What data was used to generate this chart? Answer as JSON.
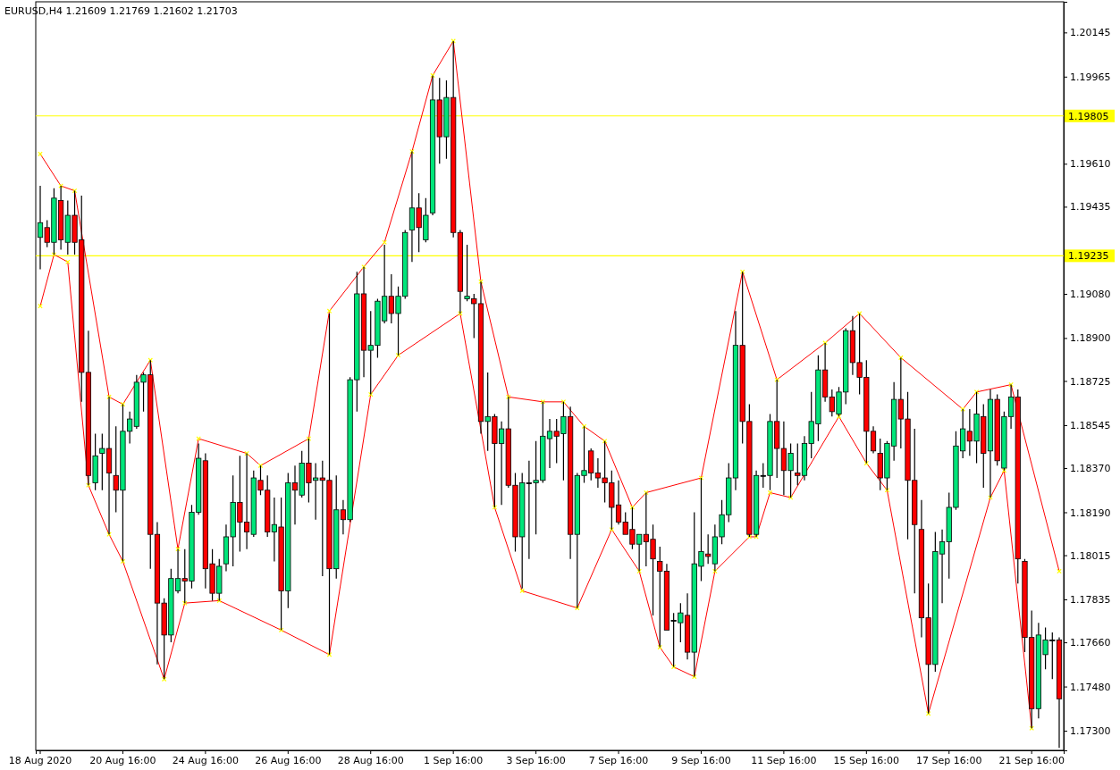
{
  "chart_data": {
    "type": "candlestick",
    "title": "EURUSD,H4 1.21609 1.21769 1.21602 1.21703",
    "categories": [
      "18 Aug 2020",
      null,
      null,
      null,
      null,
      null,
      null,
      null,
      null,
      null,
      null,
      null,
      "20 Aug 16:00",
      null,
      null,
      null,
      null,
      null,
      null,
      null,
      null,
      null,
      null,
      null,
      "24 Aug 16:00",
      null,
      null,
      null,
      null,
      null,
      null,
      null,
      null,
      null,
      null,
      null,
      "26 Aug 16:00",
      null,
      null,
      null,
      null,
      null,
      null,
      null,
      null,
      null,
      null,
      null,
      "28 Aug 16:00",
      null,
      null,
      null,
      null,
      null,
      null,
      null,
      null,
      null,
      null,
      null,
      "1 Sep 16:00",
      null,
      null,
      null,
      null,
      null,
      null,
      null,
      null,
      null,
      null,
      null,
      "3 Sep 16:00",
      null,
      null,
      null,
      null,
      null,
      null,
      null,
      null,
      null,
      null,
      null,
      "7 Sep 16:00",
      null,
      null,
      null,
      null,
      null,
      null,
      null,
      null,
      null,
      null,
      null,
      "9 Sep 16:00",
      null,
      null,
      null,
      null,
      null,
      null,
      null,
      null,
      null,
      null,
      null,
      "11 Sep 16:00",
      null,
      null,
      null,
      null,
      null,
      null,
      null,
      null,
      null,
      null,
      null,
      "15 Sep 16:00",
      null,
      null,
      null,
      null,
      null,
      null,
      null,
      null,
      null,
      null,
      null,
      "17 Sep 16:00",
      null,
      null,
      null,
      null,
      null,
      null,
      null,
      null,
      null,
      null,
      null,
      "21 Sep 16:00",
      null,
      null,
      null,
      null
    ],
    "ohlc": [
      [
        1.1931,
        1.1952,
        1.1918,
        1.1937
      ],
      [
        1.1935,
        1.1938,
        1.1927,
        1.1929
      ],
      [
        1.1929,
        1.1951,
        1.1924,
        1.1947
      ],
      [
        1.1946,
        1.1952,
        1.1926,
        1.193
      ],
      [
        1.1929,
        1.1946,
        1.1924,
        1.194
      ],
      [
        1.194,
        1.195,
        1.1924,
        1.1929
      ],
      [
        1.193,
        1.1948,
        1.1864,
        1.1876
      ],
      [
        1.1876,
        1.1893,
        1.183,
        1.1834
      ],
      [
        1.1831,
        1.1851,
        1.1828,
        1.1842
      ],
      [
        1.1843,
        1.1851,
        1.1828,
        1.1845
      ],
      [
        1.1845,
        1.1866,
        1.181,
        1.1835
      ],
      [
        1.1834,
        1.1854,
        1.1819,
        1.1828
      ],
      [
        1.1828,
        1.1863,
        1.1799,
        1.1852
      ],
      [
        1.1852,
        1.186,
        1.1847,
        1.1857
      ],
      [
        1.1854,
        1.1875,
        1.1853,
        1.1872
      ],
      [
        1.1872,
        1.1876,
        1.186,
        1.1875
      ],
      [
        1.1875,
        1.1881,
        1.1796,
        1.181
      ],
      [
        1.181,
        1.1815,
        1.1757,
        1.1782
      ],
      [
        1.1782,
        1.1784,
        1.1751,
        1.1769
      ],
      [
        1.1769,
        1.1796,
        1.1766,
        1.1792
      ],
      [
        1.1787,
        1.1804,
        1.1786,
        1.1792
      ],
      [
        1.1792,
        1.1804,
        1.1782,
        1.1791
      ],
      [
        1.1791,
        1.1822,
        1.1788,
        1.1819
      ],
      [
        1.1819,
        1.1847,
        1.1818,
        1.1841
      ],
      [
        1.184,
        1.1843,
        1.1788,
        1.1796
      ],
      [
        1.1798,
        1.1804,
        1.1783,
        1.1786
      ],
      [
        1.1786,
        1.18,
        1.1783,
        1.1797
      ],
      [
        1.1798,
        1.1814,
        1.1795,
        1.1809
      ],
      [
        1.1809,
        1.1834,
        1.1797,
        1.1823
      ],
      [
        1.1823,
        1.1842,
        1.1803,
        1.1815
      ],
      [
        1.1815,
        1.1843,
        1.1804,
        1.1811
      ],
      [
        1.181,
        1.1836,
        1.1809,
        1.1833
      ],
      [
        1.1832,
        1.1838,
        1.1826,
        1.1828
      ],
      [
        1.1828,
        1.1834,
        1.1809,
        1.1811
      ],
      [
        1.1811,
        1.1825,
        1.1799,
        1.1814
      ],
      [
        1.1813,
        1.1825,
        1.1771,
        1.1787
      ],
      [
        1.1787,
        1.1835,
        1.178,
        1.1831
      ],
      [
        1.1831,
        1.1838,
        1.1814,
        1.1828
      ],
      [
        1.1826,
        1.1844,
        1.1825,
        1.1839
      ],
      [
        1.1839,
        1.1849,
        1.1823,
        1.1831
      ],
      [
        1.1832,
        1.1839,
        1.1816,
        1.1833
      ],
      [
        1.1833,
        1.184,
        1.1793,
        1.1832
      ],
      [
        1.1832,
        1.19,
        1.1761,
        1.1796
      ],
      [
        1.1796,
        1.1834,
        1.1792,
        1.182
      ],
      [
        1.182,
        1.1824,
        1.181,
        1.1816
      ],
      [
        1.1816,
        1.1874,
        1.1815,
        1.1873
      ],
      [
        1.1873,
        1.1917,
        1.186,
        1.1908
      ],
      [
        1.1908,
        1.1919,
        1.1874,
        1.1885
      ],
      [
        1.1885,
        1.1901,
        1.1867,
        1.1887
      ],
      [
        1.1887,
        1.1906,
        1.1882,
        1.1905
      ],
      [
        1.1897,
        1.1928,
        1.1896,
        1.1907
      ],
      [
        1.1907,
        1.1916,
        1.1896,
        1.19
      ],
      [
        1.19,
        1.1911,
        1.1883,
        1.1907
      ],
      [
        1.1907,
        1.1934,
        1.1906,
        1.1933
      ],
      [
        1.1934,
        1.1966,
        1.1921,
        1.1943
      ],
      [
        1.1943,
        1.1949,
        1.1925,
        1.1935
      ],
      [
        1.193,
        1.1947,
        1.1929,
        1.194
      ],
      [
        1.1941,
        1.1997,
        1.194,
        1.1987
      ],
      [
        1.1987,
        1.1996,
        1.1961,
        1.1972
      ],
      [
        1.1972,
        1.1995,
        1.1963,
        1.1988
      ],
      [
        1.1988,
        1.2011,
        1.1931,
        1.1933
      ],
      [
        1.1933,
        1.1934,
        1.19,
        1.1909
      ],
      [
        1.1906,
        1.1928,
        1.1905,
        1.1907
      ],
      [
        1.1906,
        1.1908,
        1.189,
        1.1904
      ],
      [
        1.1904,
        1.1913,
        1.1851,
        1.1856
      ],
      [
        1.1856,
        1.1876,
        1.1844,
        1.1858
      ],
      [
        1.1858,
        1.1859,
        1.1821,
        1.1847
      ],
      [
        1.1847,
        1.1856,
        1.1822,
        1.1853
      ],
      [
        1.1853,
        1.1866,
        1.1829,
        1.183
      ],
      [
        1.183,
        1.1835,
        1.1803,
        1.1809
      ],
      [
        1.1809,
        1.1835,
        1.1788,
        1.1831
      ],
      [
        1.1831,
        1.184,
        1.18,
        1.1831
      ],
      [
        1.1831,
        1.1848,
        1.181,
        1.1832
      ],
      [
        1.1832,
        1.1864,
        1.1831,
        1.185
      ],
      [
        1.1849,
        1.1857,
        1.1837,
        1.1852
      ],
      [
        1.1852,
        1.1857,
        1.1839,
        1.185
      ],
      [
        1.1851,
        1.1864,
        1.1832,
        1.1858
      ],
      [
        1.1858,
        1.1862,
        1.18,
        1.181
      ],
      [
        1.181,
        1.1835,
        1.178,
        1.1834
      ],
      [
        1.1834,
        1.1854,
        1.1831,
        1.1836
      ],
      [
        1.1844,
        1.1845,
        1.1832,
        1.1835
      ],
      [
        1.1835,
        1.1841,
        1.1829,
        1.1833
      ],
      [
        1.1833,
        1.1848,
        1.1823,
        1.1831
      ],
      [
        1.1831,
        1.1836,
        1.1812,
        1.1821
      ],
      [
        1.1822,
        1.1832,
        1.1814,
        1.1815
      ],
      [
        1.1815,
        1.1819,
        1.181,
        1.181
      ],
      [
        1.1812,
        1.1821,
        1.1804,
        1.1806
      ],
      [
        1.1806,
        1.181,
        1.1795,
        1.181
      ],
      [
        1.181,
        1.1827,
        1.1797,
        1.1807
      ],
      [
        1.1808,
        1.1814,
        1.1777,
        1.18
      ],
      [
        1.1799,
        1.1805,
        1.1764,
        1.1795
      ],
      [
        1.1795,
        1.1798,
        1.1771,
        1.1771
      ],
      [
        1.1775,
        1.1778,
        1.1756,
        1.1775
      ],
      [
        1.1774,
        1.1782,
        1.1766,
        1.1778
      ],
      [
        1.1777,
        1.1786,
        1.1759,
        1.1762
      ],
      [
        1.1762,
        1.1819,
        1.1752,
        1.1798
      ],
      [
        1.1797,
        1.1833,
        1.1791,
        1.1803
      ],
      [
        1.1802,
        1.181,
        1.1798,
        1.1801
      ],
      [
        1.1798,
        1.1814,
        1.1795,
        1.1809
      ],
      [
        1.1809,
        1.1824,
        1.1806,
        1.1818
      ],
      [
        1.1818,
        1.1839,
        1.1815,
        1.1833
      ],
      [
        1.1833,
        1.1901,
        1.1828,
        1.1887
      ],
      [
        1.1887,
        1.1917,
        1.1847,
        1.1856
      ],
      [
        1.1856,
        1.1863,
        1.1809,
        1.181
      ],
      [
        1.181,
        1.1836,
        1.1809,
        1.1834
      ],
      [
        1.1834,
        1.1839,
        1.1829,
        1.1834
      ],
      [
        1.1834,
        1.1859,
        1.1828,
        1.1856
      ],
      [
        1.1856,
        1.1873,
        1.1833,
        1.1845
      ],
      [
        1.1845,
        1.1856,
        1.1826,
        1.1836
      ],
      [
        1.1836,
        1.1847,
        1.1825,
        1.1843
      ],
      [
        1.1835,
        1.1847,
        1.183,
        1.1834
      ],
      [
        1.1834,
        1.185,
        1.1832,
        1.1847
      ],
      [
        1.1847,
        1.1868,
        1.1841,
        1.1856
      ],
      [
        1.1855,
        1.1883,
        1.1848,
        1.1877
      ],
      [
        1.1877,
        1.1888,
        1.1864,
        1.1866
      ],
      [
        1.1866,
        1.1869,
        1.1858,
        1.186
      ],
      [
        1.1859,
        1.187,
        1.1858,
        1.1868
      ],
      [
        1.1868,
        1.1894,
        1.1863,
        1.1893
      ],
      [
        1.1893,
        1.1899,
        1.1875,
        1.188
      ],
      [
        1.188,
        1.19,
        1.1867,
        1.1874
      ],
      [
        1.1874,
        1.1881,
        1.1839,
        1.1852
      ],
      [
        1.1852,
        1.1854,
        1.1843,
        1.1844
      ],
      [
        1.1843,
        1.1849,
        1.1828,
        1.1833
      ],
      [
        1.1833,
        1.1848,
        1.1828,
        1.1847
      ],
      [
        1.1846,
        1.1872,
        1.184,
        1.1865
      ],
      [
        1.1865,
        1.1882,
        1.1845,
        1.1857
      ],
      [
        1.1857,
        1.1868,
        1.1808,
        1.1832
      ],
      [
        1.1832,
        1.1853,
        1.1786,
        1.1814
      ],
      [
        1.1812,
        1.1824,
        1.1768,
        1.1776
      ],
      [
        1.1776,
        1.179,
        1.1737,
        1.1757
      ],
      [
        1.1757,
        1.1811,
        1.1754,
        1.1803
      ],
      [
        1.1802,
        1.1812,
        1.1782,
        1.1807
      ],
      [
        1.1807,
        1.1827,
        1.1792,
        1.1821
      ],
      [
        1.1821,
        1.1852,
        1.182,
        1.1846
      ],
      [
        1.1844,
        1.1861,
        1.1841,
        1.1853
      ],
      [
        1.1852,
        1.1861,
        1.1842,
        1.1848
      ],
      [
        1.1848,
        1.1868,
        1.1839,
        1.1859
      ],
      [
        1.1858,
        1.1863,
        1.1829,
        1.1843
      ],
      [
        1.1844,
        1.1869,
        1.1825,
        1.1865
      ],
      [
        1.1865,
        1.1867,
        1.1838,
        1.184
      ],
      [
        1.1837,
        1.186,
        1.1836,
        1.1858
      ],
      [
        1.1858,
        1.1871,
        1.1853,
        1.1866
      ],
      [
        1.1866,
        1.1869,
        1.179,
        1.18
      ],
      [
        1.1799,
        1.18,
        1.1762,
        1.1768
      ],
      [
        1.1768,
        1.1779,
        1.1731,
        1.1739
      ],
      [
        1.1739,
        1.1774,
        1.1735,
        1.1769
      ],
      [
        1.1761,
        1.1772,
        1.1755,
        1.1767
      ],
      [
        1.1767,
        1.177,
        1.1751,
        1.1767
      ],
      [
        1.1767,
        1.1768,
        1.1723,
        1.1743
      ]
    ],
    "series": [
      {
        "type": "line",
        "color": "#ff0000",
        "values": [
          1.1965,
          null,
          null,
          1.1952,
          null,
          1.195,
          null,
          null,
          null,
          null,
          1.1866,
          null,
          1.1863,
          null,
          null,
          null,
          1.1881,
          null,
          null,
          null,
          1.1804,
          null,
          null,
          1.1849,
          null,
          null,
          null,
          null,
          null,
          null,
          1.1843,
          null,
          1.1838,
          null,
          null,
          null,
          null,
          null,
          null,
          1.1849,
          null,
          null,
          1.1901,
          null,
          null,
          null,
          null,
          1.1919,
          null,
          null,
          1.1929,
          null,
          null,
          null,
          1.1966,
          null,
          null,
          1.1997,
          null,
          null,
          1.2011,
          null,
          null,
          null,
          1.1913,
          null,
          null,
          null,
          1.1866,
          null,
          null,
          null,
          null,
          1.1864,
          null,
          null,
          1.1864,
          null,
          null,
          1.1854,
          null,
          null,
          1.1848,
          null,
          null,
          null,
          1.1821,
          null,
          1.1827,
          null,
          null,
          null,
          null,
          null,
          null,
          null,
          1.1833,
          null,
          null,
          null,
          null,
          null,
          1.1917,
          null,
          null,
          null,
          null,
          1.1873,
          null,
          null,
          null,
          null,
          null,
          null,
          1.1888,
          null,
          null,
          null,
          null,
          1.19,
          null,
          null,
          null,
          null,
          null,
          1.1882,
          null,
          null,
          null,
          null,
          null,
          null,
          null,
          null,
          1.1861,
          null,
          1.1868,
          null,
          null,
          null,
          null,
          1.1871,
          null,
          null,
          null,
          null,
          null,
          null,
          1.1795
        ]
      },
      {
        "type": "line",
        "color": "#ff0000",
        "values": [
          1.1903,
          null,
          1.1924,
          null,
          1.1921,
          null,
          null,
          1.183,
          null,
          null,
          1.181,
          null,
          1.1799,
          null,
          null,
          null,
          null,
          null,
          1.1751,
          null,
          null,
          1.1782,
          null,
          null,
          null,
          null,
          1.1783,
          null,
          null,
          null,
          null,
          null,
          null,
          null,
          null,
          1.1771,
          null,
          null,
          null,
          null,
          null,
          null,
          1.1761,
          null,
          null,
          null,
          null,
          null,
          1.1867,
          null,
          null,
          null,
          1.1883,
          null,
          null,
          null,
          null,
          null,
          null,
          null,
          null,
          1.19,
          null,
          null,
          null,
          null,
          1.1821,
          null,
          null,
          null,
          1.1787,
          null,
          null,
          null,
          null,
          null,
          null,
          null,
          1.178,
          null,
          null,
          null,
          null,
          1.1812,
          null,
          null,
          null,
          1.1795,
          null,
          null,
          1.1764,
          null,
          1.1756,
          null,
          null,
          1.1752,
          null,
          null,
          1.1795,
          null,
          null,
          null,
          null,
          1.1809,
          1.1809,
          null,
          1.1827,
          null,
          null,
          1.1825,
          null,
          null,
          null,
          null,
          null,
          null,
          1.1858,
          null,
          null,
          null,
          1.1839,
          null,
          null,
          1.1828,
          null,
          null,
          null,
          null,
          null,
          1.1737,
          null,
          null,
          null,
          null,
          null,
          null,
          null,
          null,
          1.1825,
          null,
          1.1836,
          null,
          null,
          null,
          1.1731,
          null,
          null,
          null,
          null
        ]
      }
    ],
    "marker": "cross",
    "ylim": [
      1.1722,
      1.2027
    ],
    "yticks": [
      1.20145,
      1.19965,
      {
        "value": 1.1961,
        "label": "1.19610"
      },
      1.19435,
      {
        "value": 1.1908,
        "label": "1.19080"
      },
      {
        "value": 1.189,
        "label": "1.18900"
      },
      1.18725,
      1.18545,
      {
        "value": 1.1837,
        "label": "1.18370"
      },
      {
        "value": 1.1819,
        "label": "1.18190"
      },
      1.18015,
      1.17835,
      {
        "value": 1.1766,
        "label": "1.17660"
      },
      {
        "value": 1.1748,
        "label": "1.17480"
      },
      {
        "value": 1.173,
        "label": "1.17300"
      }
    ],
    "ref_lines": [
      {
        "axis": "y",
        "value": 1.19805,
        "label": "1.19805",
        "color": "#ffff00"
      },
      {
        "axis": "y",
        "value": 1.19235,
        "label": "1.19235",
        "color": "#ffff00"
      }
    ]
  }
}
